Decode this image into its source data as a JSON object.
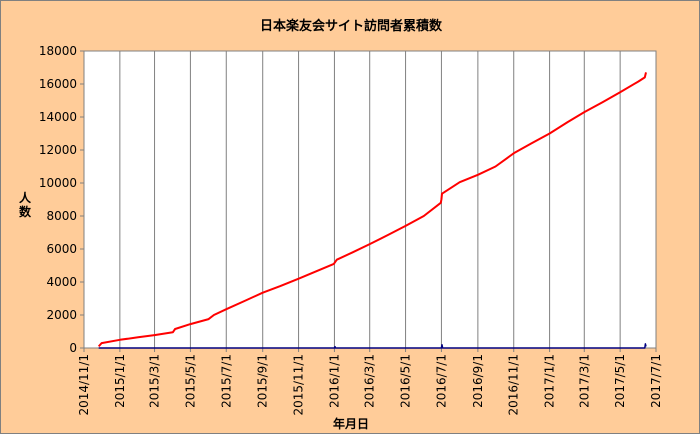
{
  "chart_data": {
    "type": "line",
    "title": "日本楽友会サイト訪問者累積数",
    "xlabel": "年月日",
    "ylabel": "人数",
    "ylim": [
      0,
      18000
    ],
    "xlim": [
      "2014-11-01",
      "2017-07-01"
    ],
    "y_ticks": [
      0,
      2000,
      4000,
      6000,
      8000,
      10000,
      12000,
      14000,
      16000,
      18000
    ],
    "x_ticks": [
      "2014/11/1",
      "2015/1/1",
      "2015/3/1",
      "2015/5/1",
      "2015/7/1",
      "2015/9/1",
      "2015/11/1",
      "2016/1/1",
      "2016/3/1",
      "2016/5/1",
      "2016/7/1",
      "2016/9/1",
      "2016/11/1",
      "2017/1/1",
      "2017/3/1",
      "2017/5/1",
      "2017/7/1"
    ],
    "grid": {
      "vertical": true,
      "horizontal": false
    },
    "series": [
      {
        "color": "#ff0000",
        "points": [
          [
            "2014-11-26",
            100
          ],
          [
            "2014-12-01",
            300
          ],
          [
            "2015-01-01",
            500
          ],
          [
            "2015-02-01",
            650
          ],
          [
            "2015-03-01",
            780
          ],
          [
            "2015-04-01",
            950
          ],
          [
            "2015-04-05",
            1150
          ],
          [
            "2015-05-01",
            1450
          ],
          [
            "2015-06-01",
            1750
          ],
          [
            "2015-06-10",
            2000
          ],
          [
            "2015-07-01",
            2350
          ],
          [
            "2015-08-01",
            2850
          ],
          [
            "2015-09-01",
            3350
          ],
          [
            "2015-10-01",
            3750
          ],
          [
            "2015-11-01",
            4200
          ],
          [
            "2015-12-01",
            4650
          ],
          [
            "2015-12-31",
            5100
          ],
          [
            "2016-01-05",
            5350
          ],
          [
            "2016-02-01",
            5800
          ],
          [
            "2016-03-01",
            6300
          ],
          [
            "2016-04-01",
            6850
          ],
          [
            "2016-05-01",
            7400
          ],
          [
            "2016-06-01",
            8000
          ],
          [
            "2016-06-30",
            8800
          ],
          [
            "2016-07-01",
            9000
          ],
          [
            "2016-07-02",
            9350
          ],
          [
            "2016-08-01",
            10050
          ],
          [
            "2016-09-01",
            10500
          ],
          [
            "2016-10-01",
            11000
          ],
          [
            "2016-11-01",
            11800
          ],
          [
            "2016-12-01",
            12400
          ],
          [
            "2017-01-01",
            13000
          ],
          [
            "2017-02-01",
            13700
          ],
          [
            "2017-03-01",
            14300
          ],
          [
            "2017-04-01",
            14900
          ],
          [
            "2017-05-01",
            15500
          ],
          [
            "2017-06-01",
            16150
          ],
          [
            "2017-06-12",
            16400
          ],
          [
            "2017-06-14",
            16700
          ]
        ]
      },
      {
        "color": "#000080",
        "points": [
          [
            "2014-11-26",
            0
          ],
          [
            "2016-01-01",
            0
          ],
          [
            "2016-01-02",
            80
          ],
          [
            "2016-01-03",
            0
          ],
          [
            "2016-07-01",
            0
          ],
          [
            "2016-07-02",
            200
          ],
          [
            "2016-07-03",
            0
          ],
          [
            "2017-06-12",
            0
          ],
          [
            "2017-06-13",
            250
          ],
          [
            "2017-06-14",
            100
          ]
        ]
      }
    ]
  }
}
